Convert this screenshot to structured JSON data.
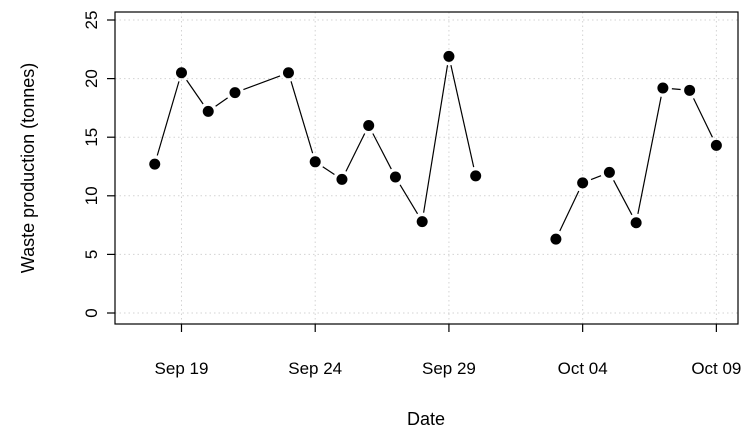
{
  "chart_data": {
    "type": "line",
    "title": "",
    "xlabel": "Date",
    "ylabel": "Waste production (tonnes)",
    "ylim": [
      0,
      25
    ],
    "yticks": [
      0,
      5,
      10,
      15,
      20,
      25
    ],
    "xlim": [
      "2021-09-17",
      "2021-10-10"
    ],
    "xticks": [
      {
        "date": "2021-09-19",
        "label": "Sep 19"
      },
      {
        "date": "2021-09-24",
        "label": "Sep 24"
      },
      {
        "date": "2021-09-29",
        "label": "Sep 29"
      },
      {
        "date": "2021-10-04",
        "label": "Oct 04"
      },
      {
        "date": "2021-10-09",
        "label": "Oct 09"
      }
    ],
    "grid": true,
    "series": [
      {
        "points": [
          {
            "x": "2021-09-18",
            "y": 12.7
          },
          {
            "x": "2021-09-19",
            "y": 20.5
          },
          {
            "x": "2021-09-20",
            "y": 17.2
          },
          {
            "x": "2021-09-21",
            "y": 18.8
          },
          {
            "x": "2021-09-23",
            "y": 20.5
          },
          {
            "x": "2021-09-24",
            "y": 12.9
          },
          {
            "x": "2021-09-25",
            "y": 11.4
          },
          {
            "x": "2021-09-26",
            "y": 16.0
          },
          {
            "x": "2021-09-27",
            "y": 11.6
          },
          {
            "x": "2021-09-28",
            "y": 7.8
          },
          {
            "x": "2021-09-29",
            "y": 21.9
          },
          {
            "x": "2021-09-30",
            "y": 11.7
          },
          {
            "x": "2021-10-01",
            "y": null
          },
          {
            "x": "2021-10-02",
            "y": null
          },
          {
            "x": "2021-10-03",
            "y": 6.3
          },
          {
            "x": "2021-10-04",
            "y": 11.1
          },
          {
            "x": "2021-10-05",
            "y": 12.0
          },
          {
            "x": "2021-10-06",
            "y": 7.7
          },
          {
            "x": "2021-10-07",
            "y": 19.2
          },
          {
            "x": "2021-10-08",
            "y": 19.0
          },
          {
            "x": "2021-10-09",
            "y": 14.3
          }
        ]
      }
    ],
    "colors": {
      "line": "#000000",
      "point": "#000000",
      "grid": "#d3d3d3"
    }
  }
}
